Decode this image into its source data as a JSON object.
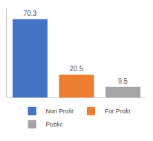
{
  "chart_data": {
    "type": "bar",
    "categories": [
      "Non Profit",
      "For Profit",
      "Public"
    ],
    "values": [
      70.3,
      20.5,
      9.5
    ],
    "colors": [
      "#4472c4",
      "#ed7d31",
      "#a5a5a5"
    ],
    "ylim": [
      0,
      80
    ],
    "data_labels": true,
    "tick_labels": false,
    "grid": false,
    "legend": "bottom"
  }
}
